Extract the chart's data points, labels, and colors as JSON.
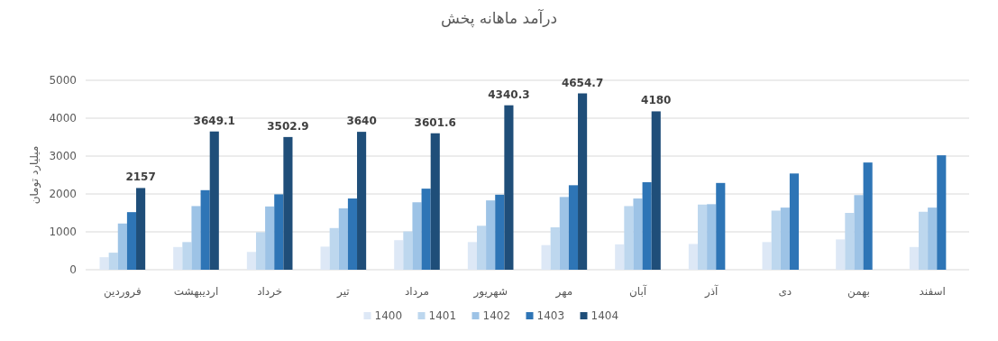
{
  "chart_data": {
    "type": "bar",
    "title": "درآمد ماهانه پخش",
    "ylabel": "میلیارد تومان",
    "categories": [
      "فروردین",
      "اردیبهشت",
      "خرداد",
      "تیر",
      "مرداد",
      "شهریور",
      "مهر",
      "آبان",
      "آذر",
      "دی",
      "بهمن",
      "اسفند"
    ],
    "series": [
      {
        "name": "1400",
        "color": "#dde8f6",
        "values": [
          330,
          600,
          470,
          610,
          780,
          730,
          650,
          670,
          680,
          730,
          800,
          600
        ]
      },
      {
        "name": "1401",
        "color": "#bdd7ee",
        "values": [
          450,
          730,
          990,
          1100,
          1010,
          1160,
          1120,
          1680,
          1720,
          1560,
          1500,
          1530
        ]
      },
      {
        "name": "1402",
        "color": "#9dc3e6",
        "values": [
          1220,
          1680,
          1670,
          1620,
          1780,
          1830,
          1920,
          1880,
          1730,
          1640,
          1970,
          1640
        ]
      },
      {
        "name": "1403",
        "color": "#2e75b6",
        "values": [
          1520,
          2100,
          1990,
          1880,
          2140,
          1980,
          2230,
          2310,
          2290,
          2540,
          2830,
          3020
        ]
      },
      {
        "name": "1404",
        "color": "#1f4e79",
        "values": [
          2157,
          3649.1,
          3502.9,
          3640,
          3601.6,
          4340.3,
          4654.7,
          4180,
          null,
          null,
          null,
          null
        ],
        "value_labels": [
          "2157",
          "3649.1",
          "3502.9",
          "3640",
          "3601.6",
          "4340.3",
          "4654.7",
          "4180",
          null,
          null,
          null,
          null
        ]
      }
    ],
    "ylim": [
      0,
      5000
    ],
    "yticks": [
      0,
      1000,
      2000,
      3000,
      4000,
      5000
    ],
    "grid": "y",
    "legend": "bottom"
  }
}
